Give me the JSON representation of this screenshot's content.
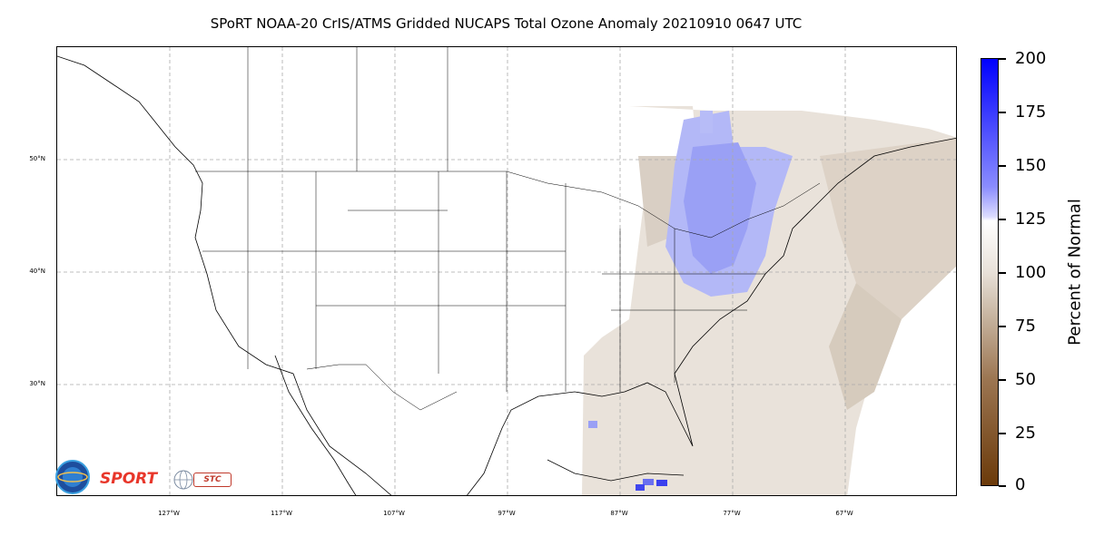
{
  "title": "SPoRT NOAA-20 CrIS/ATMS Gridded NUCAPS Total Ozone Anomaly 20210910 0647 UTC",
  "map": {
    "lat_labels": [
      "50°N",
      "40°N",
      "30°N"
    ],
    "lon_labels": [
      "127°W",
      "117°W",
      "107°W",
      "97°W",
      "87°W",
      "77°W",
      "67°W"
    ]
  },
  "colorbar": {
    "title": "Percent of Normal",
    "ticks": [
      "200",
      "175",
      "150",
      "125",
      "100",
      "75",
      "50",
      "25",
      "0"
    ],
    "colors": {
      "low": "#6b3a0a",
      "mid": "#ffffff",
      "high": "#0000ff"
    }
  },
  "logos": {
    "sport": "SPORT",
    "stc": "STC"
  }
}
